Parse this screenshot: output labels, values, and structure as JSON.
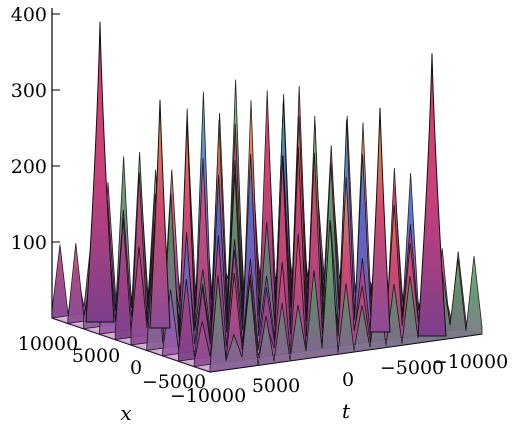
{
  "chart_data": {
    "type": "surface3d",
    "axes": {
      "z": {
        "label": "",
        "range": [
          0,
          400
        ],
        "ticks": [
          100,
          200,
          300,
          400
        ]
      },
      "x": {
        "label": "x",
        "range": [
          -10000,
          10000
        ],
        "ticks": [
          10000,
          5000,
          0,
          -5000,
          -10000
        ]
      },
      "t": {
        "label": "t",
        "range": [
          -10000,
          10000
        ],
        "ticks": [
          5000,
          0,
          -5000,
          -10000
        ]
      }
    },
    "grid": false,
    "colors": {
      "ridge_low": "#9a4a9e",
      "ridge_mid": "#d9467a",
      "ridge_high": "#f0a040",
      "ridge_cool": "#4aa890",
      "ridge_blue": "#5a6ad0",
      "peak_outline": "#111111",
      "base": "#b46bb8"
    },
    "notable_peaks": [
      {
        "position": "left edge",
        "z": 395
      },
      {
        "position": "right edge",
        "z": 372
      },
      {
        "position": "center cluster",
        "z": 290
      }
    ]
  }
}
